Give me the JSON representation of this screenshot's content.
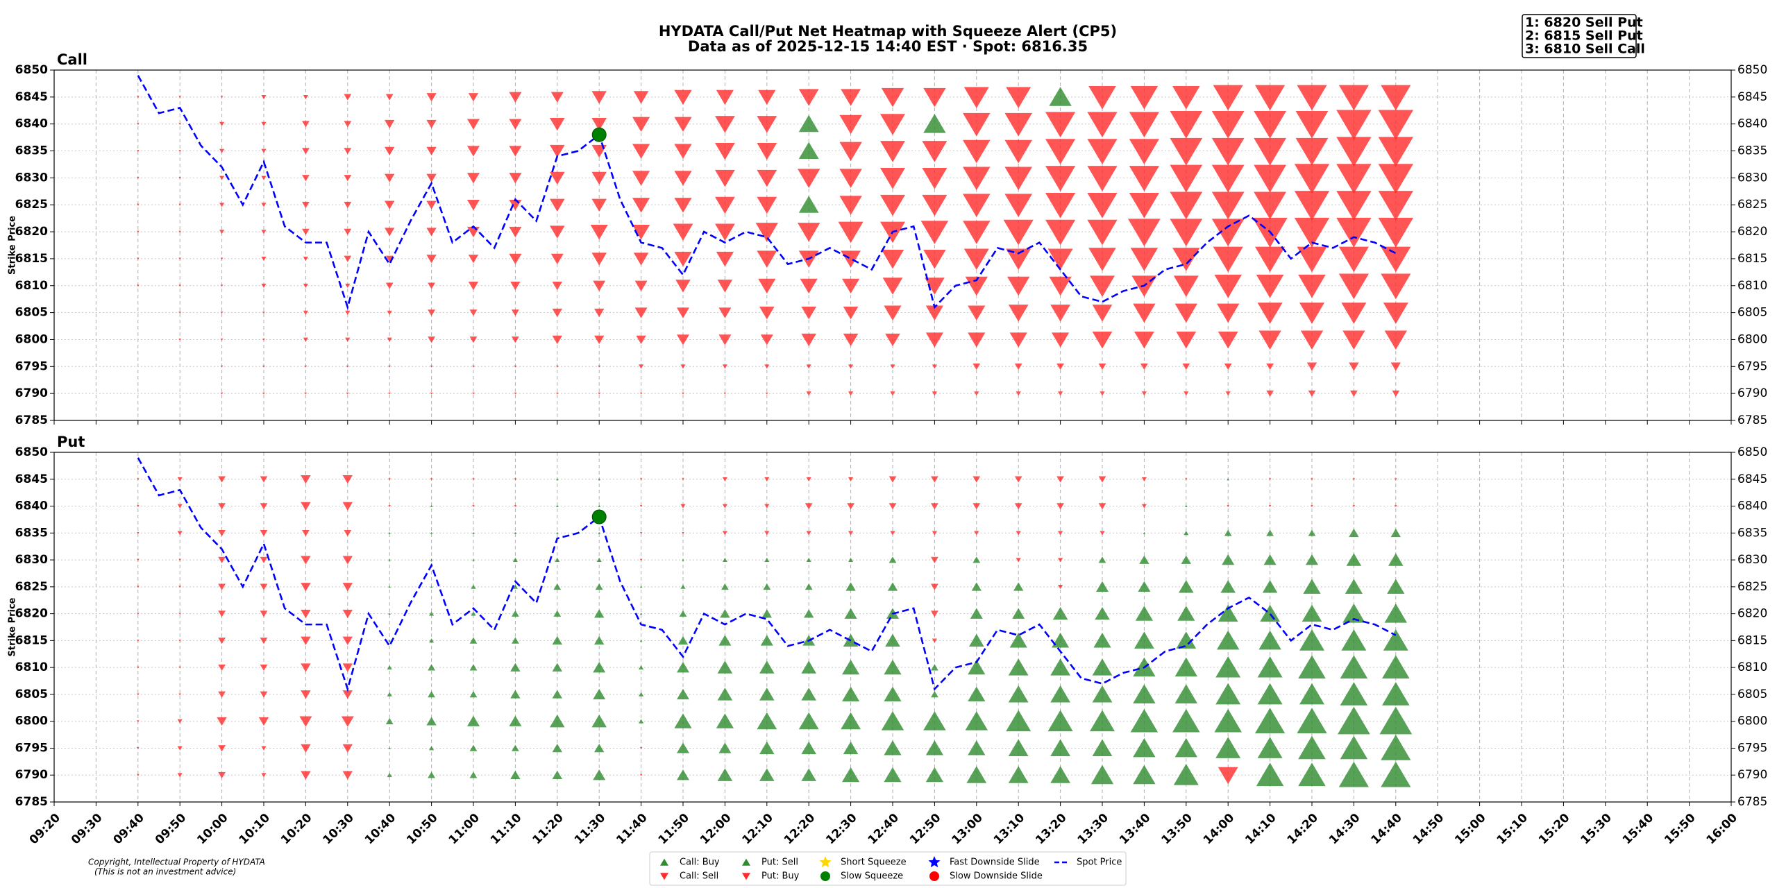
{
  "chart_data": {
    "type": "heatmap",
    "title": "HYDATA Call/Put Net Heatmap with Squeeze Alert (CP5)",
    "subtitle": "Data as of 2025-12-15 14:40 EST · Spot: 6816.35",
    "annotation": [
      "1: 6820 Sell Put",
      "2: 6815 Sell Put",
      "3: 6810 Sell Call"
    ],
    "copyright": [
      "Copyright, Intellectual Property of HYDATA",
      "(This is not an investment advice)"
    ],
    "ylabel": "Strike Price",
    "xlim": [
      "09:20",
      "16:00"
    ],
    "xticks": [
      "09:20",
      "09:30",
      "09:40",
      "09:50",
      "10:00",
      "10:10",
      "10:20",
      "10:30",
      "10:40",
      "10:50",
      "11:00",
      "11:10",
      "11:20",
      "11:30",
      "11:40",
      "11:50",
      "12:00",
      "12:10",
      "12:20",
      "12:30",
      "12:40",
      "12:50",
      "13:00",
      "13:10",
      "13:20",
      "13:30",
      "13:40",
      "13:50",
      "14:00",
      "14:10",
      "14:20",
      "14:30",
      "14:40",
      "14:50",
      "15:00",
      "15:10",
      "15:20",
      "15:30",
      "15:40",
      "15:50",
      "16:00"
    ],
    "ylim": [
      6785,
      6850
    ],
    "yticks": [
      6785,
      6790,
      6795,
      6800,
      6805,
      6810,
      6815,
      6820,
      6825,
      6830,
      6835,
      6840,
      6845,
      6850
    ],
    "grid": true,
    "strikes": [
      6790,
      6795,
      6800,
      6805,
      6810,
      6815,
      6820,
      6825,
      6830,
      6835,
      6840,
      6845
    ],
    "times": [
      "09:40",
      "09:50",
      "10:00",
      "10:10",
      "10:20",
      "10:30",
      "10:40",
      "10:50",
      "11:00",
      "11:10",
      "11:20",
      "11:30",
      "11:40",
      "11:50",
      "12:00",
      "12:10",
      "12:20",
      "12:30",
      "12:40",
      "12:50",
      "13:00",
      "13:10",
      "13:20",
      "13:30",
      "13:40",
      "13:50",
      "14:00",
      "14:10",
      "14:20",
      "14:30",
      "14:40"
    ],
    "panels": [
      {
        "name": "Call",
        "up_color": "#2e8b2e",
        "down_color": "#ff2a2a",
        "values": [
          [
            0,
            0,
            -1,
            -1,
            -1,
            -1,
            -1,
            -1,
            -1,
            -1,
            -1,
            -1,
            -1,
            -1,
            -1,
            -1,
            -2,
            -2,
            -2,
            -2,
            -2,
            -2,
            -2,
            -2,
            -2,
            -2,
            -2,
            -3,
            -3,
            -3,
            -3
          ],
          [
            0,
            0,
            -1,
            -1,
            -1,
            -1,
            -1,
            -1,
            -1,
            -1,
            -1,
            -1,
            -2,
            -2,
            -2,
            -2,
            -2,
            -2,
            -2,
            -2,
            -3,
            -3,
            -3,
            -3,
            -3,
            -3,
            -3,
            -3,
            -4,
            -4,
            -4
          ],
          [
            0,
            -1,
            -1,
            -1,
            -2,
            -2,
            -2,
            -3,
            -3,
            -3,
            -4,
            -4,
            -4,
            -5,
            -5,
            -5,
            -6,
            -6,
            -6,
            -7,
            -7,
            -7,
            -7,
            -8,
            -8,
            -8,
            -8,
            -9,
            -9,
            -9,
            -9
          ],
          [
            0,
            -1,
            -1,
            -1,
            -2,
            -2,
            -2,
            -3,
            -3,
            -3,
            -4,
            -4,
            -5,
            -5,
            -5,
            -6,
            -6,
            -6,
            -7,
            -7,
            -7,
            -8,
            -8,
            -8,
            -9,
            -9,
            -9,
            -10,
            -10,
            -10,
            -10
          ],
          [
            -1,
            -1,
            -1,
            -2,
            -2,
            -2,
            -3,
            -3,
            -4,
            -4,
            -4,
            -5,
            -5,
            -6,
            -6,
            -7,
            -7,
            -7,
            -8,
            -8,
            -9,
            -9,
            -9,
            -10,
            -10,
            -10,
            -11,
            -11,
            -11,
            -12,
            -12
          ],
          [
            -1,
            -1,
            -1,
            -2,
            -2,
            -3,
            -3,
            -4,
            -4,
            -5,
            -5,
            -6,
            -6,
            -7,
            -7,
            -8,
            -8,
            -8,
            -9,
            -9,
            -10,
            -10,
            -10,
            -11,
            -11,
            -11,
            -12,
            -12,
            -12,
            -12,
            -12
          ],
          [
            -1,
            -1,
            -2,
            -2,
            -3,
            -3,
            -4,
            -4,
            -5,
            -5,
            -6,
            -7,
            -7,
            -8,
            -8,
            -9,
            -9,
            -10,
            -10,
            -11,
            -11,
            -12,
            -12,
            -12,
            -13,
            -13,
            -13,
            -14,
            -14,
            -14,
            -14
          ],
          [
            -1,
            -1,
            -2,
            -2,
            -3,
            -3,
            -4,
            -4,
            -5,
            -5,
            -6,
            -6,
            -7,
            -7,
            -8,
            -8,
            8,
            -9,
            -10,
            -10,
            -11,
            -11,
            -12,
            -12,
            -12,
            -13,
            -13,
            -13,
            -14,
            -14,
            -14
          ],
          [
            -1,
            -1,
            -2,
            -2,
            -3,
            -3,
            -4,
            -4,
            -5,
            -5,
            -6,
            -6,
            -7,
            -7,
            -8,
            -8,
            -9,
            -9,
            -10,
            -10,
            -11,
            -11,
            -12,
            -12,
            -12,
            -13,
            -13,
            -13,
            -14,
            -14,
            -14
          ],
          [
            -1,
            -1,
            -2,
            -2,
            -3,
            -3,
            -4,
            -4,
            -5,
            -5,
            -6,
            -6,
            -7,
            -7,
            -8,
            -8,
            8,
            -9,
            -10,
            -10,
            -11,
            -11,
            -12,
            -12,
            -12,
            -13,
            -13,
            -13,
            -13,
            -14,
            -14
          ],
          [
            -1,
            -1,
            -2,
            -2,
            -3,
            -3,
            -4,
            -4,
            -5,
            -5,
            -6,
            -6,
            -7,
            -7,
            -8,
            -8,
            8,
            -9,
            -10,
            9,
            -11,
            -11,
            -12,
            -12,
            -12,
            -13,
            -13,
            -13,
            -13,
            -14,
            -14
          ],
          [
            -1,
            -1,
            -1,
            -2,
            -2,
            -3,
            -3,
            -4,
            -4,
            -5,
            -5,
            -6,
            -6,
            -7,
            -7,
            -7,
            -8,
            -8,
            -9,
            -9,
            -10,
            -10,
            9,
            -11,
            -11,
            -11,
            -12,
            -12,
            -12,
            -12,
            -12
          ]
        ]
      },
      {
        "name": "Put",
        "up_color": "#2e8b2e",
        "down_color": "#ff2a2a",
        "values": [
          [
            -1,
            -2,
            -3,
            -2,
            -4,
            -4,
            2,
            3,
            3,
            4,
            4,
            5,
            -1,
            5,
            6,
            6,
            6,
            7,
            7,
            7,
            8,
            8,
            8,
            9,
            9,
            10,
            -8,
            11,
            11,
            12,
            12
          ],
          [
            -1,
            -2,
            -3,
            -2,
            -4,
            -4,
            1,
            2,
            3,
            3,
            4,
            4,
            -1,
            5,
            5,
            6,
            6,
            6,
            7,
            7,
            7,
            8,
            8,
            8,
            9,
            9,
            10,
            10,
            11,
            11,
            12
          ],
          [
            -1,
            -2,
            -4,
            -4,
            -5,
            -5,
            3,
            4,
            5,
            5,
            6,
            6,
            2,
            7,
            7,
            8,
            8,
            8,
            9,
            9,
            9,
            10,
            10,
            10,
            11,
            11,
            11,
            12,
            12,
            13,
            13
          ],
          [
            -1,
            -1,
            -3,
            -3,
            -4,
            -4,
            2,
            3,
            3,
            4,
            4,
            5,
            2,
            5,
            6,
            6,
            6,
            7,
            7,
            3,
            7,
            8,
            8,
            8,
            9,
            9,
            10,
            10,
            10,
            11,
            11
          ],
          [
            -1,
            -1,
            -3,
            -3,
            -4,
            -4,
            2,
            3,
            3,
            4,
            4,
            5,
            2,
            5,
            6,
            6,
            6,
            7,
            7,
            3,
            7,
            8,
            8,
            8,
            9,
            9,
            10,
            10,
            11,
            11,
            11
          ],
          [
            -1,
            -1,
            -3,
            -3,
            -4,
            -4,
            1,
            2,
            3,
            3,
            4,
            4,
            1,
            4,
            5,
            5,
            5,
            6,
            6,
            -2,
            6,
            7,
            7,
            7,
            8,
            8,
            9,
            9,
            10,
            10,
            10
          ],
          [
            -1,
            -1,
            -3,
            -3,
            -4,
            -4,
            1,
            2,
            2,
            3,
            3,
            4,
            1,
            3,
            4,
            4,
            4,
            5,
            5,
            -3,
            5,
            5,
            6,
            6,
            7,
            7,
            8,
            8,
            8,
            9,
            9
          ],
          [
            -1,
            -1,
            -3,
            -3,
            -4,
            -4,
            1,
            1,
            2,
            2,
            3,
            3,
            1,
            2,
            3,
            3,
            3,
            4,
            4,
            -3,
            4,
            4,
            -2,
            5,
            5,
            6,
            6,
            6,
            7,
            7,
            7
          ],
          [
            -1,
            -1,
            -3,
            -3,
            -4,
            -4,
            1,
            1,
            1,
            2,
            2,
            2,
            -1,
            1,
            2,
            2,
            2,
            2,
            3,
            -3,
            3,
            -2,
            -2,
            3,
            4,
            4,
            5,
            5,
            5,
            6,
            6
          ],
          [
            -1,
            -2,
            -3,
            -3,
            -3,
            -3,
            1,
            1,
            1,
            1,
            1,
            1,
            -1,
            -1,
            -2,
            -2,
            -2,
            -2,
            -2,
            -2,
            -2,
            -2,
            -2,
            -2,
            1,
            2,
            3,
            3,
            3,
            4,
            4
          ],
          [
            -1,
            -2,
            -3,
            -3,
            -4,
            -4,
            -1,
            1,
            -1,
            -1,
            1,
            1,
            -1,
            -2,
            -2,
            -2,
            -3,
            -3,
            -3,
            -3,
            -3,
            -3,
            -3,
            -3,
            -2,
            1,
            -1,
            -1,
            -1,
            -1,
            -1
          ],
          [
            -1,
            -2,
            -3,
            -3,
            -4,
            -4,
            -1,
            -1,
            -1,
            -1,
            1,
            1,
            -1,
            -1,
            -2,
            -2,
            -2,
            -2,
            -3,
            -3,
            -3,
            -3,
            -3,
            -3,
            -2,
            -1,
            1,
            -1,
            -1,
            -1,
            -1
          ]
        ]
      }
    ],
    "spot": {
      "name": "Spot Price",
      "color": "#0000ff",
      "x": [
        "09:40",
        "09:45",
        "09:50",
        "09:55",
        "10:00",
        "10:05",
        "10:10",
        "10:15",
        "10:20",
        "10:25",
        "10:30",
        "10:35",
        "10:40",
        "10:45",
        "10:50",
        "10:55",
        "11:00",
        "11:05",
        "11:10",
        "11:15",
        "11:20",
        "11:25",
        "11:30",
        "11:35",
        "11:40",
        "11:45",
        "11:50",
        "11:55",
        "12:00",
        "12:05",
        "12:10",
        "12:15",
        "12:20",
        "12:25",
        "12:30",
        "12:35",
        "12:40",
        "12:45",
        "12:50",
        "12:55",
        "13:00",
        "13:05",
        "13:10",
        "13:15",
        "13:20",
        "13:25",
        "13:30",
        "13:35",
        "13:40",
        "13:45",
        "13:50",
        "13:55",
        "14:00",
        "14:05",
        "14:10",
        "14:15",
        "14:20",
        "14:25",
        "14:30",
        "14:35",
        "14:40"
      ],
      "values": [
        6849,
        6842,
        6843,
        6836,
        6832,
        6825,
        6833,
        6821,
        6818,
        6818,
        6806,
        6820,
        6814,
        6822,
        6829,
        6818,
        6821,
        6817,
        6826,
        6822,
        6834,
        6835,
        6838,
        6826,
        6818,
        6817,
        6812,
        6820,
        6818,
        6820,
        6819,
        6814,
        6815,
        6817,
        6815,
        6813,
        6820,
        6821,
        6806,
        6810,
        6811,
        6817,
        6816,
        6818,
        6813,
        6808,
        6807,
        6809,
        6810,
        6813,
        6814,
        6818,
        6821,
        6823,
        6820,
        6815,
        6818,
        6817,
        6819,
        6818,
        6816
      ]
    },
    "alerts": [
      {
        "name": "Slow Squeeze",
        "color": "#008000",
        "x": [
          "11:30"
        ],
        "y": [
          6838
        ]
      }
    ],
    "legend": [
      {
        "name": "Call: Buy",
        "color": "#2e8b2e",
        "marker": "^"
      },
      {
        "name": "Call: Sell",
        "color": "#ff2a2a",
        "marker": "v"
      },
      {
        "name": "Put: Sell",
        "color": "#2e8b2e",
        "marker": "^"
      },
      {
        "name": "Put: Buy",
        "color": "#ff2a2a",
        "marker": "v"
      },
      {
        "name": "Short Squeeze",
        "color": "#ffd700",
        "marker": "*"
      },
      {
        "name": "Slow Squeeze",
        "color": "#008000",
        "marker": "o"
      },
      {
        "name": "Fast Downside Slide",
        "color": "#0000ff",
        "marker": "*"
      },
      {
        "name": "Slow Downside Slide",
        "color": "#ff0000",
        "marker": "o"
      },
      {
        "name": "Spot Price",
        "color": "#0000ff",
        "marker": "--"
      }
    ]
  }
}
